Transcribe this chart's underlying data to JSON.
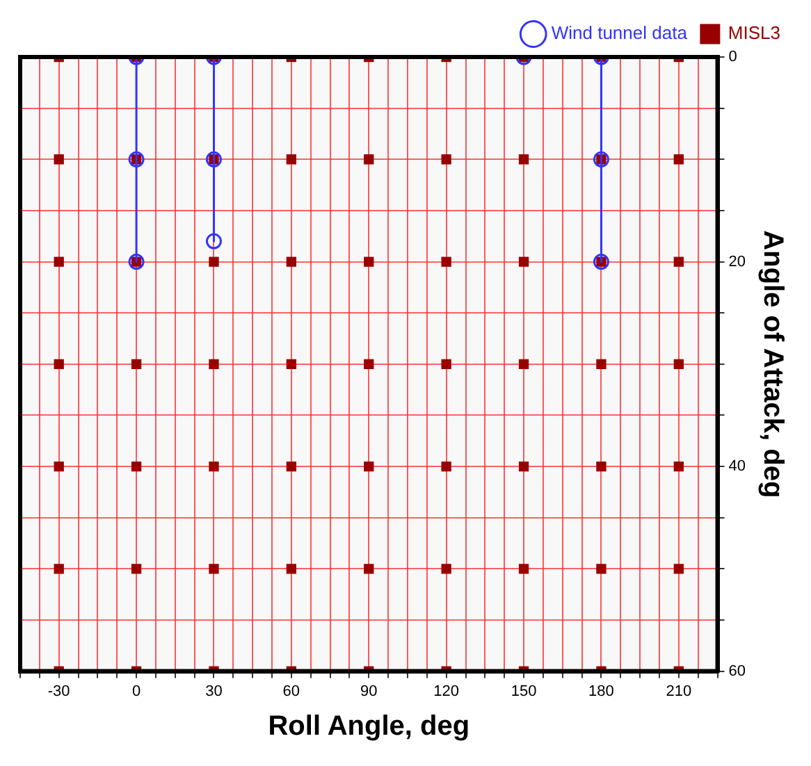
{
  "chart_data": {
    "type": "scatter",
    "xlabel": "Roll Angle, deg",
    "ylabel": "Angle of Attack, deg",
    "xlim": [
      -45,
      225
    ],
    "ylim": [
      60,
      0
    ],
    "xticks": [
      {
        "value": -45,
        "label": null
      },
      {
        "value": -37.5,
        "label": null
      },
      -30,
      {
        "value": -22.5,
        "label": null
      },
      {
        "value": -15,
        "label": null
      },
      {
        "value": -7.5,
        "label": null
      },
      0,
      {
        "value": 7.5,
        "label": null
      },
      {
        "value": 15,
        "label": null
      },
      {
        "value": 22.5,
        "label": null
      },
      30,
      {
        "value": 37.5,
        "label": null
      },
      {
        "value": 45,
        "label": null
      },
      {
        "value": 52.5,
        "label": null
      },
      60,
      {
        "value": 67.5,
        "label": null
      },
      {
        "value": 75,
        "label": null
      },
      {
        "value": 82.5,
        "label": null
      },
      90,
      {
        "value": 97.5,
        "label": null
      },
      {
        "value": 105,
        "label": null
      },
      {
        "value": 112.5,
        "label": null
      },
      120,
      {
        "value": 127.5,
        "label": null
      },
      {
        "value": 135,
        "label": null
      },
      {
        "value": 142.5,
        "label": null
      },
      150,
      {
        "value": 157.5,
        "label": null
      },
      {
        "value": 165,
        "label": null
      },
      {
        "value": 172.5,
        "label": null
      },
      180,
      {
        "value": 187.5,
        "label": null
      },
      {
        "value": 195,
        "label": null
      },
      {
        "value": 202.5,
        "label": null
      },
      210,
      {
        "value": 217.5,
        "label": null
      },
      {
        "value": 225,
        "label": null
      }
    ],
    "yticks": [
      0,
      {
        "value": 5,
        "label": null
      },
      {
        "value": 10,
        "label": null
      },
      {
        "value": 15,
        "label": null
      },
      20,
      {
        "value": 25,
        "label": null
      },
      {
        "value": 30,
        "label": null
      },
      {
        "value": 35,
        "label": null
      },
      40,
      {
        "value": 45,
        "label": null
      },
      {
        "value": 50,
        "label": null
      },
      {
        "value": 55,
        "label": null
      },
      60
    ],
    "grid": true,
    "legend": "top right",
    "series": [
      {
        "name": "Wind tunnel data",
        "type": "line",
        "marker": "circle",
        "color": "#3333ff",
        "x": [
          0,
          0,
          0,
          15,
          30,
          30,
          30,
          90,
          150,
          165,
          180,
          180,
          180
        ],
        "values": [
          0,
          10,
          20,
          null,
          0,
          10,
          18,
          null,
          0,
          null,
          0,
          10,
          20
        ]
      },
      {
        "name": "MISL3",
        "type": "scatter",
        "marker": "square",
        "color": "#990000",
        "x": [
          -30,
          0,
          30,
          60,
          90,
          120,
          150,
          180,
          210,
          -30,
          0,
          30,
          60,
          90,
          120,
          150,
          180,
          210,
          -30,
          0,
          30,
          60,
          90,
          120,
          150,
          180,
          210,
          -30,
          0,
          30,
          60,
          90,
          120,
          150,
          180,
          210,
          -30,
          0,
          30,
          60,
          90,
          120,
          150,
          180,
          210,
          -30,
          0,
          30,
          60,
          90,
          120,
          150,
          180,
          210,
          -30,
          0,
          30,
          60,
          90,
          120,
          150,
          180,
          210
        ],
        "values": [
          0,
          0,
          0,
          0,
          0,
          0,
          0,
          0,
          0,
          10,
          10,
          10,
          10,
          10,
          10,
          10,
          10,
          10,
          20,
          20,
          20,
          20,
          20,
          20,
          20,
          20,
          20,
          30,
          30,
          30,
          30,
          30,
          30,
          30,
          30,
          30,
          40,
          40,
          40,
          40,
          40,
          40,
          40,
          40,
          40,
          50,
          50,
          50,
          50,
          50,
          50,
          50,
          50,
          50,
          60,
          60,
          60,
          60,
          60,
          60,
          60,
          60,
          60
        ]
      }
    ]
  }
}
